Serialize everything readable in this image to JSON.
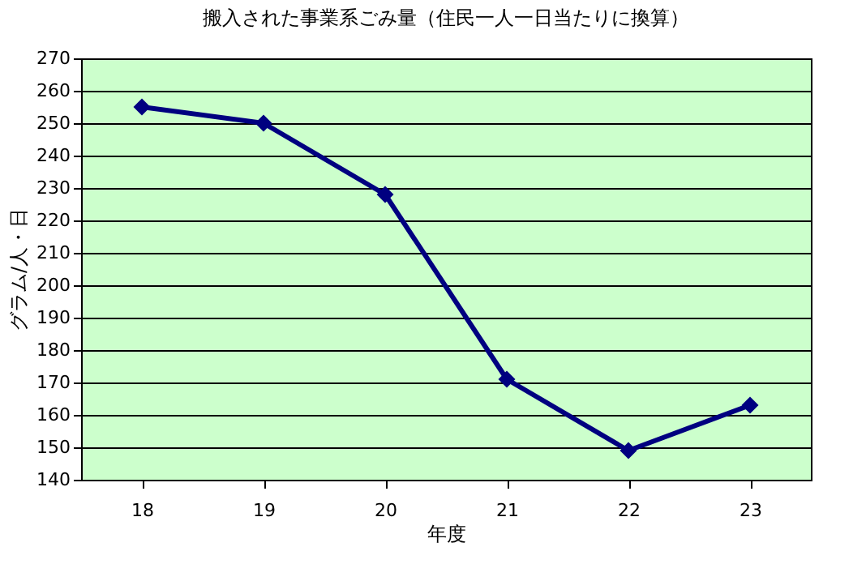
{
  "chart_data": {
    "type": "line",
    "title": "搬入された事業系ごみ量（住民一人一日当たりに換算）",
    "xlabel": "年度",
    "ylabel": "グラム/人・日",
    "categories": [
      "18",
      "19",
      "20",
      "21",
      "22",
      "23"
    ],
    "series": [
      {
        "color": "#000080",
        "values": [
          255,
          250,
          228,
          171,
          149,
          163
        ]
      }
    ],
    "ylim": [
      140,
      270
    ],
    "yticks": [
      140,
      150,
      160,
      170,
      180,
      190,
      200,
      210,
      220,
      230,
      240,
      250,
      260,
      270
    ],
    "grid": "y",
    "marker": "diamond",
    "line_style": "solid",
    "legend": false
  }
}
